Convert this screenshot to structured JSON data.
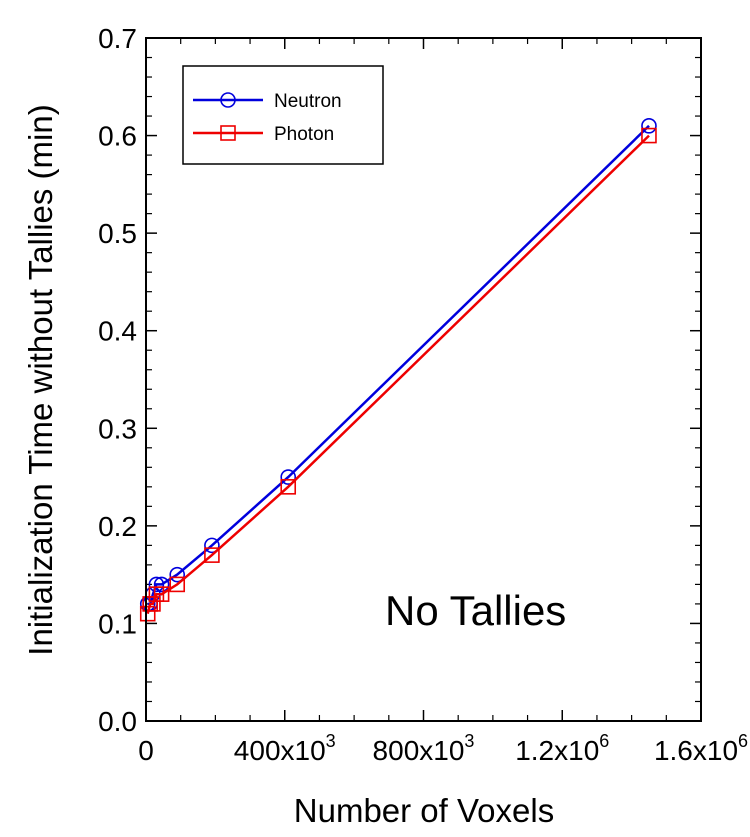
{
  "chart_data": {
    "type": "line",
    "xlabel": "Number of Voxels",
    "ylabel": "Initialization Time without Tallies  (min)",
    "annotation": "No Tallies",
    "xlim": [
      0,
      1600000
    ],
    "ylim": [
      0.0,
      0.7
    ],
    "x_ticks": [
      {
        "value": 0,
        "base": "0",
        "exp": ""
      },
      {
        "value": 400000,
        "base": "400x10",
        "exp": "3"
      },
      {
        "value": 800000,
        "base": "800x10",
        "exp": "3"
      },
      {
        "value": 1200000,
        "base": "1.2x10",
        "exp": "6"
      },
      {
        "value": 1600000,
        "base": "1.6x10",
        "exp": "6"
      }
    ],
    "y_ticks": [
      {
        "value": 0.0,
        "label": "0.0"
      },
      {
        "value": 0.1,
        "label": "0.1"
      },
      {
        "value": 0.2,
        "label": "0.2"
      },
      {
        "value": 0.3,
        "label": "0.3"
      },
      {
        "value": 0.4,
        "label": "0.4"
      },
      {
        "value": 0.5,
        "label": "0.5"
      },
      {
        "value": 0.6,
        "label": "0.6"
      },
      {
        "value": 0.7,
        "label": "0.7"
      }
    ],
    "legend_position": "top-left",
    "grid": false,
    "series": [
      {
        "name": "Neutron",
        "color": "#0000dd",
        "marker": "circle",
        "points": [
          [
            5000,
            0.12
          ],
          [
            12000,
            0.12
          ],
          [
            20000,
            0.13
          ],
          [
            30000,
            0.14
          ],
          [
            45000,
            0.14
          ],
          [
            90000,
            0.15
          ],
          [
            190000,
            0.18
          ],
          [
            410000,
            0.25
          ],
          [
            1450000,
            0.61
          ]
        ]
      },
      {
        "name": "Photon",
        "color": "#ee0000",
        "marker": "square",
        "points": [
          [
            5000,
            0.11
          ],
          [
            12000,
            0.12
          ],
          [
            20000,
            0.12
          ],
          [
            30000,
            0.13
          ],
          [
            45000,
            0.13
          ],
          [
            90000,
            0.14
          ],
          [
            190000,
            0.17
          ],
          [
            410000,
            0.24
          ],
          [
            1450000,
            0.6
          ]
        ]
      }
    ]
  }
}
